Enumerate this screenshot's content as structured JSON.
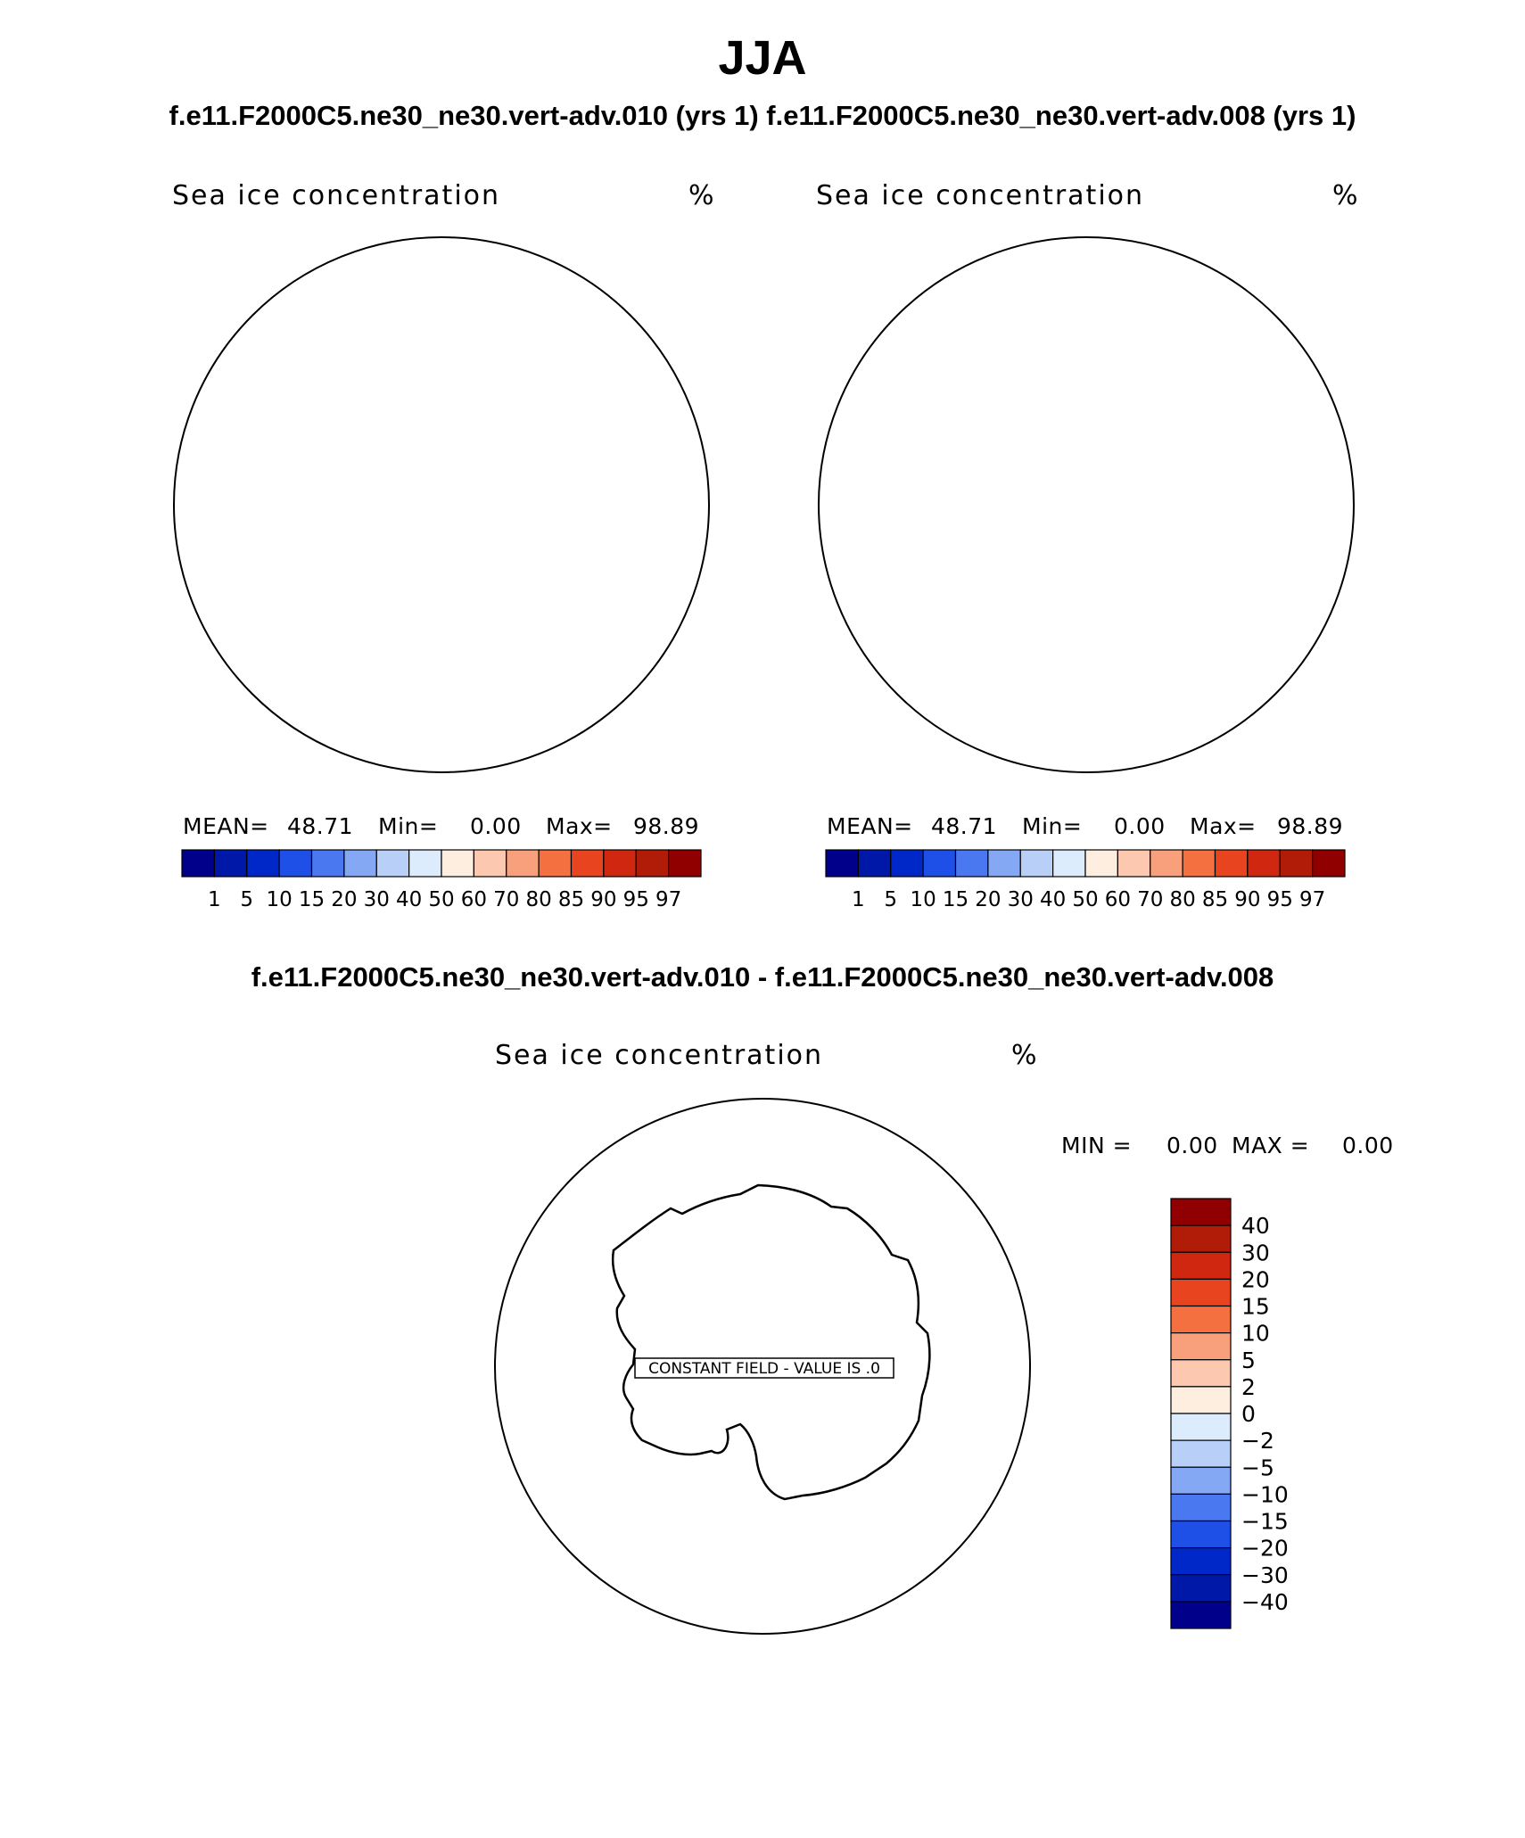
{
  "header": {
    "title": "JJA",
    "subtitle": "f.e11.F2000C5.ne30_ne30.vert-adv.010 (yrs 1) f.e11.F2000C5.ne30_ne30.vert-adv.008 (yrs 1)",
    "diff_title": "f.e11.F2000C5.ne30_ne30.vert-adv.010 - f.e11.F2000C5.ne30_ne30.vert-adv.008"
  },
  "panels": [
    {
      "variable": "Sea ice concentration",
      "units": "%",
      "stats": {
        "mean_label": "MEAN=",
        "mean": "48.71",
        "min_label": "Min=",
        "min": "0.00",
        "max_label": "Max=",
        "max": "98.89"
      }
    },
    {
      "variable": "Sea ice concentration",
      "units": "%",
      "stats": {
        "mean_label": "MEAN=",
        "mean": "48.71",
        "min_label": "Min=",
        "min": "0.00",
        "max_label": "Max=",
        "max": "98.89"
      }
    }
  ],
  "diff_panel": {
    "variable": "Sea ice concentration",
    "units": "%",
    "stats": {
      "min_label": "MIN =",
      "min": "0.00",
      "max_label": "MAX =",
      "max": "0.00"
    },
    "constant_label": "CONSTANT FIELD - VALUE IS .0"
  },
  "colorbar_top": {
    "colors": [
      "#00008b",
      "#0018a8",
      "#0028c8",
      "#1e50e8",
      "#4a78f0",
      "#84a8f4",
      "#b8d0f8",
      "#dcecfc",
      "#fdeee0",
      "#fcc8b0",
      "#f8a07c",
      "#f47040",
      "#e84420",
      "#d02810",
      "#b01c08",
      "#900000"
    ],
    "labels": [
      "1",
      "5",
      "10",
      "15",
      "20",
      "30",
      "40",
      "50",
      "60",
      "70",
      "80",
      "85",
      "90",
      "95",
      "97"
    ]
  },
  "colorbar_diff": {
    "colors": [
      "#900000",
      "#b01c08",
      "#d02810",
      "#e84420",
      "#f47040",
      "#f8a07c",
      "#fcc8b0",
      "#fdeee0",
      "#dcecfc",
      "#b8d0f8",
      "#84a8f4",
      "#4a78f0",
      "#1e50e8",
      "#0028c8",
      "#0018a8",
      "#00008b"
    ],
    "labels": [
      "40",
      "30",
      "20",
      "15",
      "10",
      "5",
      "2",
      "0",
      "−2",
      "−5",
      "−10",
      "−15",
      "−20",
      "−30",
      "−40"
    ]
  },
  "chart_data": {
    "type": "heatmap",
    "projection": "south polar stereographic",
    "region": "Antarctica / Southern Ocean",
    "season": "JJA",
    "variable": "Sea ice concentration",
    "units": "%",
    "contour_levels": [
      1,
      5,
      10,
      15,
      20,
      30,
      40,
      50,
      60,
      70,
      80,
      85,
      90,
      95,
      97
    ],
    "diff_contour_levels": [
      -40,
      -30,
      -20,
      -15,
      -10,
      -5,
      -2,
      0,
      2,
      5,
      10,
      15,
      20,
      30,
      40
    ],
    "fields": [
      {
        "case": "f.e11.F2000C5.ne30_ne30.vert-adv.010",
        "mean": 48.71,
        "min": 0.0,
        "max": 98.89
      },
      {
        "case": "f.e11.F2000C5.ne30_ne30.vert-adv.008",
        "mean": 48.71,
        "min": 0.0,
        "max": 98.89
      },
      {
        "case": "difference",
        "min": 0.0,
        "max": 0.0,
        "constant_value": 0.0
      }
    ]
  }
}
